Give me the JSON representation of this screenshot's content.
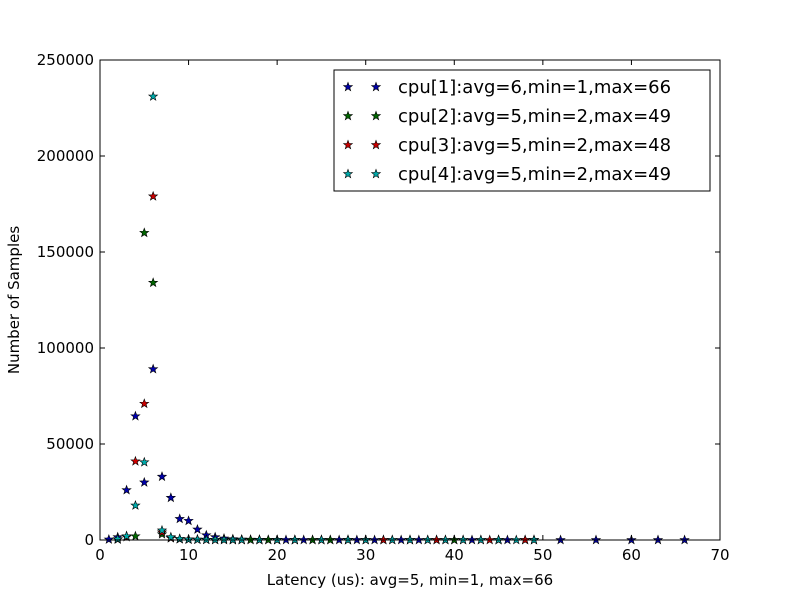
{
  "chart_data": {
    "type": "scatter",
    "xlabel": "Latency (us): avg=5, min=1, max=66",
    "ylabel": "Number of Samples",
    "xlim": [
      0,
      70
    ],
    "ylim": [
      0,
      250000
    ],
    "x_ticks": [
      0,
      10,
      20,
      30,
      40,
      50,
      60,
      70
    ],
    "y_ticks": [
      0,
      50000,
      100000,
      150000,
      200000,
      250000
    ],
    "x_tick_labels": [
      "0",
      "10",
      "20",
      "30",
      "40",
      "50",
      "60",
      "70"
    ],
    "y_tick_labels": [
      "0",
      "50000",
      "100000",
      "150000",
      "200000",
      "250000"
    ],
    "grid": false,
    "legend_position": "top-right",
    "marker": "star",
    "series": [
      {
        "name": "cpu[1]:avg=6,min=1,max=66",
        "color": "#0000aa",
        "points": [
          [
            1,
            300
          ],
          [
            2,
            1500
          ],
          [
            3,
            26000
          ],
          [
            4,
            64500
          ],
          [
            5,
            30000
          ],
          [
            6,
            89000
          ],
          [
            7,
            33000
          ],
          [
            8,
            22000
          ],
          [
            9,
            11000
          ],
          [
            10,
            10000
          ],
          [
            11,
            5500
          ],
          [
            12,
            2500
          ],
          [
            13,
            1500
          ],
          [
            14,
            800
          ],
          [
            15,
            500
          ],
          [
            16,
            300
          ],
          [
            17,
            200
          ],
          [
            18,
            150
          ],
          [
            19,
            100
          ],
          [
            20,
            100
          ],
          [
            21,
            50
          ],
          [
            22,
            50
          ],
          [
            23,
            50
          ],
          [
            24,
            30
          ],
          [
            25,
            30
          ],
          [
            26,
            30
          ],
          [
            27,
            20
          ],
          [
            28,
            20
          ],
          [
            29,
            20
          ],
          [
            30,
            20
          ],
          [
            31,
            10
          ],
          [
            32,
            10
          ],
          [
            33,
            10
          ],
          [
            34,
            10
          ],
          [
            35,
            10
          ],
          [
            36,
            10
          ],
          [
            37,
            10
          ],
          [
            38,
            10
          ],
          [
            39,
            10
          ],
          [
            40,
            10
          ],
          [
            41,
            5
          ],
          [
            42,
            5
          ],
          [
            43,
            5
          ],
          [
            45,
            5
          ],
          [
            46,
            5
          ],
          [
            48,
            5
          ],
          [
            49,
            5
          ],
          [
            52,
            5
          ],
          [
            56,
            5
          ],
          [
            60,
            5
          ],
          [
            63,
            5
          ],
          [
            66,
            5
          ]
        ]
      },
      {
        "name": "cpu[2]:avg=5,min=2,max=49",
        "color": "#006600",
        "points": [
          [
            2,
            400
          ],
          [
            3,
            2000
          ],
          [
            4,
            2000
          ],
          [
            5,
            160000
          ],
          [
            6,
            134000
          ],
          [
            7,
            3000
          ],
          [
            8,
            1000
          ],
          [
            9,
            500
          ],
          [
            10,
            300
          ],
          [
            11,
            200
          ],
          [
            12,
            150
          ],
          [
            13,
            100
          ],
          [
            14,
            80
          ],
          [
            15,
            60
          ],
          [
            16,
            50
          ],
          [
            17,
            40
          ],
          [
            18,
            30
          ],
          [
            19,
            20
          ],
          [
            20,
            20
          ],
          [
            22,
            10
          ],
          [
            24,
            10
          ],
          [
            26,
            10
          ],
          [
            28,
            5
          ],
          [
            30,
            5
          ],
          [
            35,
            5
          ],
          [
            40,
            5
          ],
          [
            45,
            5
          ],
          [
            49,
            5
          ]
        ]
      },
      {
        "name": "cpu[3]:avg=5,min=2,max=48",
        "color": "#cc0000",
        "points": [
          [
            2,
            300
          ],
          [
            3,
            1500
          ],
          [
            4,
            41000
          ],
          [
            5,
            71000
          ],
          [
            6,
            179000
          ],
          [
            7,
            4000
          ],
          [
            8,
            1000
          ],
          [
            9,
            500
          ],
          [
            10,
            300
          ],
          [
            11,
            200
          ],
          [
            12,
            150
          ],
          [
            13,
            100
          ],
          [
            14,
            80
          ],
          [
            15,
            60
          ],
          [
            16,
            50
          ],
          [
            18,
            30
          ],
          [
            20,
            20
          ],
          [
            22,
            10
          ],
          [
            25,
            10
          ],
          [
            28,
            5
          ],
          [
            32,
            5
          ],
          [
            38,
            5
          ],
          [
            44,
            5
          ],
          [
            48,
            5
          ]
        ]
      },
      {
        "name": "cpu[4]:avg=5,min=2,max=49",
        "color": "#00aaaa",
        "points": [
          [
            2,
            500
          ],
          [
            3,
            2000
          ],
          [
            4,
            18000
          ],
          [
            5,
            40500
          ],
          [
            6,
            231000
          ],
          [
            7,
            5000
          ],
          [
            8,
            1500
          ],
          [
            9,
            600
          ],
          [
            10,
            300
          ],
          [
            11,
            200
          ],
          [
            12,
            150
          ],
          [
            13,
            100
          ],
          [
            14,
            80
          ],
          [
            15,
            60
          ],
          [
            16,
            50
          ],
          [
            18,
            30
          ],
          [
            20,
            20
          ],
          [
            22,
            10
          ],
          [
            25,
            10
          ],
          [
            28,
            5
          ],
          [
            30,
            5
          ],
          [
            33,
            5
          ],
          [
            35,
            5
          ],
          [
            37,
            5
          ],
          [
            39,
            5
          ],
          [
            41,
            5
          ],
          [
            43,
            5
          ],
          [
            45,
            5
          ],
          [
            47,
            5
          ],
          [
            49,
            5
          ]
        ]
      }
    ]
  }
}
